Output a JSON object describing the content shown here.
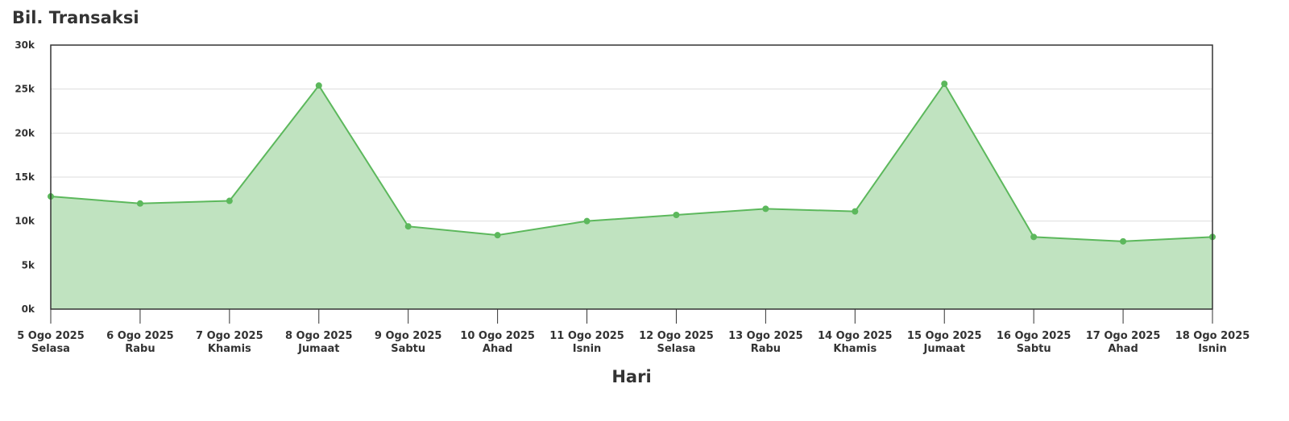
{
  "chart_data": {
    "type": "area",
    "title": "Bil. Transaksi",
    "xlabel": "Hari",
    "ylabel": "",
    "ylim": [
      0,
      30000
    ],
    "yticks": [
      {
        "value": 0,
        "label": "0k"
      },
      {
        "value": 5000,
        "label": "5k"
      },
      {
        "value": 10000,
        "label": "10k"
      },
      {
        "value": 15000,
        "label": "15k"
      },
      {
        "value": 20000,
        "label": "20k"
      },
      {
        "value": 25000,
        "label": "25k"
      },
      {
        "value": 30000,
        "label": "30k"
      }
    ],
    "categories": [
      {
        "date": "5 Ogo 2025",
        "day": "Selasa"
      },
      {
        "date": "6 Ogo 2025",
        "day": "Rabu"
      },
      {
        "date": "7 Ogo 2025",
        "day": "Khamis"
      },
      {
        "date": "8 Ogo 2025",
        "day": "Jumaat"
      },
      {
        "date": "9 Ogo 2025",
        "day": "Sabtu"
      },
      {
        "date": "10 Ogo 2025",
        "day": "Ahad"
      },
      {
        "date": "11 Ogo 2025",
        "day": "Isnin"
      },
      {
        "date": "12 Ogo 2025",
        "day": "Selasa"
      },
      {
        "date": "13 Ogo 2025",
        "day": "Rabu"
      },
      {
        "date": "14 Ogo 2025",
        "day": "Khamis"
      },
      {
        "date": "15 Ogo 2025",
        "day": "Jumaat"
      },
      {
        "date": "16 Ogo 2025",
        "day": "Sabtu"
      },
      {
        "date": "17 Ogo 2025",
        "day": "Ahad"
      },
      {
        "date": "18 Ogo 2025",
        "day": "Isnin"
      }
    ],
    "values": [
      12800,
      12000,
      12300,
      25400,
      9400,
      8400,
      10000,
      10700,
      11400,
      11100,
      25600,
      8200,
      7700,
      8200
    ],
    "grid": true,
    "legend": "none",
    "colors": {
      "line": "#5cb85c",
      "fill": "#c0e3c0",
      "grid": "#dddddd",
      "axis": "#333333"
    }
  }
}
